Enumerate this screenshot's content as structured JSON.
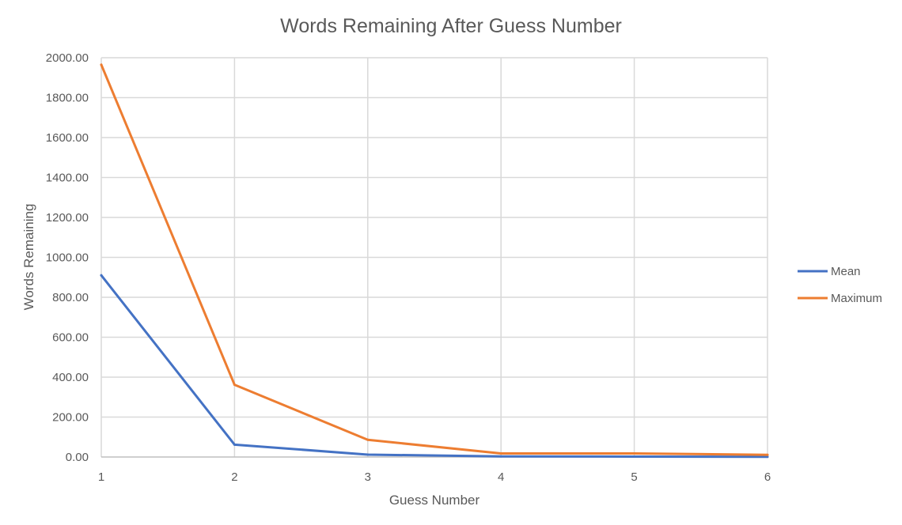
{
  "chart_data": {
    "type": "line",
    "title": "Words Remaining After Guess Number",
    "xlabel": "Guess Number",
    "ylabel": "Words Remaining",
    "x": [
      1,
      2,
      3,
      4,
      5,
      6
    ],
    "x_tick_labels": [
      "1",
      "2",
      "3",
      "4",
      "5",
      "6"
    ],
    "ylim": [
      0,
      2000
    ],
    "y_ticks": [
      0,
      200,
      400,
      600,
      800,
      1000,
      1200,
      1400,
      1600,
      1800,
      2000
    ],
    "y_tick_labels": [
      "0.00",
      "200.00",
      "400.00",
      "600.00",
      "800.00",
      "1000.00",
      "1200.00",
      "1400.00",
      "1600.00",
      "1800.00",
      "2000.00"
    ],
    "grid": true,
    "legend_position": "right",
    "series": [
      {
        "name": "Mean",
        "color": "#4472C4",
        "values": [
          910,
          62,
          12,
          3,
          2,
          1
        ]
      },
      {
        "name": "Maximum",
        "color": "#ED7D31",
        "values": [
          1965,
          362,
          86,
          18,
          18,
          11
        ]
      }
    ]
  }
}
